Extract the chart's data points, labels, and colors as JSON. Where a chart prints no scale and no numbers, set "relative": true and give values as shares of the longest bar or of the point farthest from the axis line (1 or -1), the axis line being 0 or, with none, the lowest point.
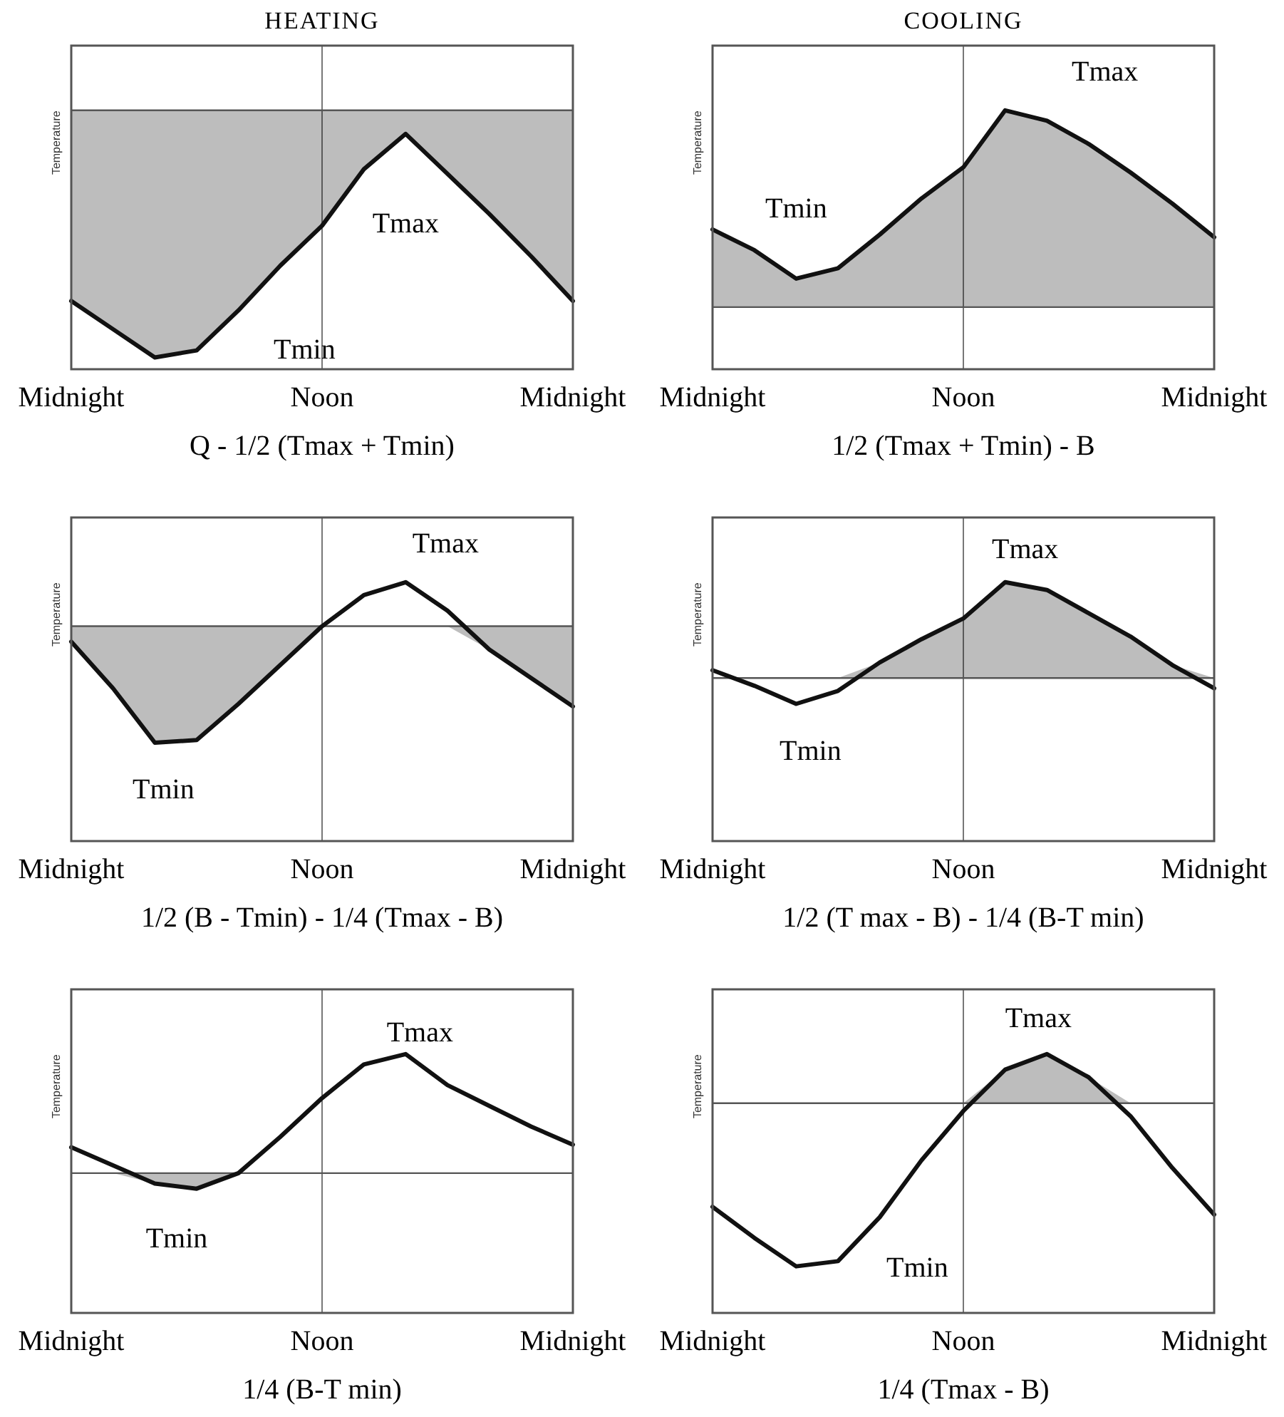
{
  "chart_data": [
    {
      "type": "line",
      "title": "HEATING",
      "ylabel": "Temperature",
      "relative": true,
      "grid": "x",
      "categories": [
        "Midnight",
        null,
        null,
        null,
        null,
        null,
        "Noon",
        null,
        null,
        null,
        null,
        null,
        "Midnight"
      ],
      "series": [
        {
          "color": "#111111",
          "values": [
            0.29,
            0.17,
            0.05,
            0.08,
            0.25,
            0.44,
            0.61,
            0.85,
            1.0,
            0.83,
            0.66,
            0.48,
            0.29
          ],
          "lower": [
            0.29,
            0.17,
            0.05,
            0.08,
            0.25,
            0.44,
            0.61,
            0.85,
            1.0,
            0.83,
            0.66,
            0.48,
            0.29
          ],
          "upper": [
            1.1,
            1.1,
            1.1,
            1.1,
            1.1,
            1.1,
            1.1,
            1.1,
            1.1,
            1.1,
            1.1,
            1.1,
            1.1
          ]
        }
      ],
      "ref_lines": [
        {
          "axis": "y",
          "value": 1.1
        }
      ],
      "annotations": [
        "Tmax",
        "Tmin",
        "Q - 1/2 (Tmax + Tmin)"
      ]
    },
    {
      "type": "line",
      "title": "COOLING",
      "ylabel": "Temperature",
      "relative": true,
      "grid": "x",
      "categories": [
        "Midnight",
        null,
        null,
        null,
        null,
        null,
        "Noon",
        null,
        null,
        null,
        null,
        null,
        "Midnight"
      ],
      "series": [
        {
          "color": "#111111",
          "values": [
            0.54,
            0.46,
            0.35,
            0.39,
            0.52,
            0.66,
            0.78,
            1.0,
            0.96,
            0.87,
            0.76,
            0.64,
            0.51
          ],
          "lower": [
            0.24,
            0.24,
            0.24,
            0.24,
            0.24,
            0.24,
            0.24,
            0.24,
            0.24,
            0.24,
            0.24,
            0.24,
            0.24
          ],
          "upper": [
            0.54,
            0.46,
            0.35,
            0.39,
            0.52,
            0.66,
            0.78,
            1.0,
            0.96,
            0.87,
            0.76,
            0.64,
            0.51
          ]
        }
      ],
      "ref_lines": [
        {
          "axis": "y",
          "value": 0.24
        }
      ],
      "annotations": [
        "Tmax",
        "Tmin",
        "1/2 (Tmax + Tmin) - B"
      ]
    },
    {
      "type": "line",
      "ylabel": "Temperature",
      "relative": true,
      "grid": "x",
      "categories": [
        "Midnight",
        null,
        null,
        null,
        null,
        null,
        "Noon",
        null,
        null,
        null,
        null,
        null,
        "Midnight"
      ],
      "series": [
        {
          "color": "#111111",
          "values": [
            0.77,
            0.59,
            0.38,
            0.39,
            0.53,
            0.68,
            0.83,
            0.95,
            1.0,
            0.89,
            0.74,
            0.63,
            0.52
          ],
          "lower": [
            0.77,
            0.59,
            0.38,
            0.39,
            0.53,
            0.68,
            0.83,
            0.83,
            0.83,
            0.83,
            0.74,
            0.63,
            0.52
          ],
          "upper": [
            0.83,
            0.83,
            0.83,
            0.83,
            0.83,
            0.83,
            0.83,
            0.83,
            0.83,
            0.83,
            0.83,
            0.83,
            0.83
          ]
        }
      ],
      "ref_lines": [
        {
          "axis": "y",
          "value": 0.83
        }
      ],
      "annotations": [
        "Tmax",
        "Tmin",
        "1/2 (B - Tmin) - 1/4 (Tmax - B)"
      ]
    },
    {
      "type": "line",
      "ylabel": "Temperature",
      "relative": true,
      "grid": "x",
      "categories": [
        "Midnight",
        null,
        null,
        null,
        null,
        null,
        "Noon",
        null,
        null,
        null,
        null,
        null,
        "Midnight"
      ],
      "series": [
        {
          "color": "#111111",
          "values": [
            0.66,
            0.6,
            0.53,
            0.58,
            0.69,
            0.78,
            0.86,
            1.0,
            0.97,
            0.88,
            0.79,
            0.68,
            0.59
          ],
          "lower": [
            0.63,
            0.63,
            0.63,
            0.63,
            0.63,
            0.63,
            0.63,
            0.63,
            0.63,
            0.63,
            0.63,
            0.63,
            0.63
          ],
          "upper": [
            0.63,
            0.63,
            0.63,
            0.63,
            0.69,
            0.78,
            0.86,
            1.0,
            0.97,
            0.88,
            0.79,
            0.68,
            0.63
          ]
        }
      ],
      "ref_lines": [
        {
          "axis": "y",
          "value": 0.63
        }
      ],
      "annotations": [
        "Tmax",
        "Tmin",
        "1/2 (T max - B) - 1/4 (B-T min)"
      ]
    },
    {
      "type": "line",
      "ylabel": "Temperature",
      "relative": true,
      "grid": "x",
      "categories": [
        "Midnight",
        null,
        null,
        null,
        null,
        null,
        "Noon",
        null,
        null,
        null,
        null,
        null,
        "Midnight"
      ],
      "series": [
        {
          "color": "#111111",
          "values": [
            0.64,
            0.57,
            0.5,
            0.48,
            0.54,
            0.68,
            0.83,
            0.96,
            1.0,
            0.88,
            0.8,
            0.72,
            0.65
          ],
          "lower": [
            0.54,
            0.54,
            0.5,
            0.48,
            0.54,
            0.54,
            0.54,
            0.54,
            0.54,
            0.54,
            0.54,
            0.54,
            0.54
          ],
          "upper": [
            0.54,
            0.54,
            0.54,
            0.54,
            0.54,
            0.54,
            0.54,
            0.54,
            0.54,
            0.54,
            0.54,
            0.54,
            0.54
          ]
        }
      ],
      "ref_lines": [
        {
          "axis": "y",
          "value": 0.54
        }
      ],
      "annotations": [
        "Tmax",
        "Tmin",
        "1/4 (B-T min)"
      ]
    },
    {
      "type": "line",
      "ylabel": "Temperature",
      "relative": true,
      "grid": "x",
      "categories": [
        "Midnight",
        null,
        null,
        null,
        null,
        null,
        "Noon",
        null,
        null,
        null,
        null,
        null,
        "Midnight"
      ],
      "series": [
        {
          "color": "#111111",
          "values": [
            0.41,
            0.29,
            0.18,
            0.2,
            0.37,
            0.59,
            0.78,
            0.94,
            1.0,
            0.91,
            0.76,
            0.56,
            0.38
          ],
          "lower": [
            0.81,
            0.81,
            0.81,
            0.81,
            0.81,
            0.81,
            0.81,
            0.81,
            0.81,
            0.81,
            0.81,
            0.81,
            0.81
          ],
          "upper": [
            0.81,
            0.81,
            0.81,
            0.81,
            0.81,
            0.81,
            0.81,
            0.94,
            1.0,
            0.91,
            0.81,
            0.81,
            0.81
          ]
        }
      ],
      "ref_lines": [
        {
          "axis": "y",
          "value": 0.81
        }
      ],
      "annotations": [
        "Tmax",
        "Tmin",
        "1/4 (Tmax - B)"
      ]
    }
  ]
}
